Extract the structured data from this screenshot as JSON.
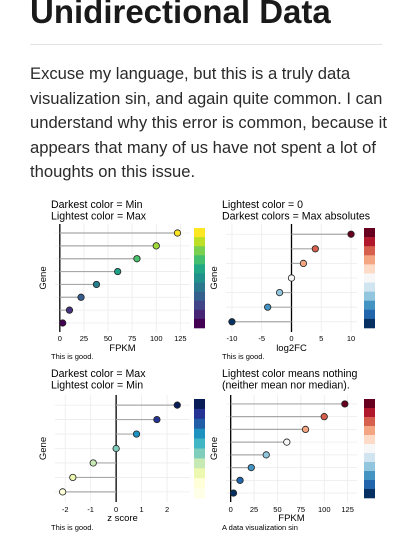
{
  "article": {
    "heading": "Unidirectional Data",
    "paragraph": "Excuse my language, but this is a truly data visualization sin, and again quite common. I can understand why this error is common, because it appears that many of us have not spent a lot of thoughts on this issue."
  },
  "chart_data": [
    {
      "type": "lollipop",
      "title": "Darkest color = Min\nLightest color = Max",
      "xlabel": "FPKM",
      "ylabel": "Gene",
      "caption": "This is good.",
      "xlim": [
        -5,
        135
      ],
      "xticks": [
        0,
        25,
        50,
        75,
        100,
        125
      ],
      "values": [
        3,
        10,
        22,
        38,
        60,
        80,
        100,
        122
      ],
      "colors": [
        "#440154",
        "#46327e",
        "#365c8d",
        "#277f8e",
        "#1fa187",
        "#4ac16d",
        "#a0da39",
        "#fde725"
      ],
      "colorbar": [
        "#fde725",
        "#bddf26",
        "#7ad151",
        "#44bf70",
        "#22a884",
        "#21918c",
        "#2a788e",
        "#355f8d",
        "#414487",
        "#482475",
        "#440154"
      ]
    },
    {
      "type": "lollipop",
      "title": "Lightest color = 0\nDarkest colors = Max absolutes",
      "xlabel": "log2FC",
      "ylabel": "Gene",
      "caption": "This is good.",
      "xlim": [
        -11,
        11
      ],
      "xticks": [
        -10,
        -5,
        0,
        5,
        10
      ],
      "values": [
        -10,
        -4,
        -2,
        0,
        2,
        4,
        10
      ],
      "colors": [
        "#053061",
        "#4393c3",
        "#92c5de",
        "#f7f7f7",
        "#f4a582",
        "#d6604d",
        "#67001f"
      ],
      "colorbar": [
        "#67001f",
        "#b2182b",
        "#d6604d",
        "#f4a582",
        "#fddbc7",
        "#f7f7f7",
        "#d1e5f0",
        "#92c5de",
        "#4393c3",
        "#2166ac",
        "#053061"
      ]
    },
    {
      "type": "lollipop",
      "title": "Darkest color = Max\nLightest color = Min",
      "xlabel": "z score",
      "ylabel": "Gene",
      "caption": "This is good.",
      "xlim": [
        -2.4,
        2.9
      ],
      "xticks": [
        -2,
        -1,
        0,
        1,
        2
      ],
      "values": [
        -2.1,
        -1.7,
        -0.9,
        0,
        0.8,
        1.6,
        2.4
      ],
      "colors": [
        "#ffffd9",
        "#edf8b1",
        "#c7e9b4",
        "#7fcdbb",
        "#1d91c0",
        "#253494",
        "#081d58"
      ],
      "colorbar": [
        "#081d58",
        "#253494",
        "#225ea8",
        "#1d91c0",
        "#41b6c4",
        "#7fcdbb",
        "#c7e9b4",
        "#edf8b1",
        "#ffffd9",
        "#ffffe8"
      ]
    },
    {
      "type": "lollipop",
      "title": "Lightest color means nothing\n(neither mean nor median).",
      "xlabel": "FPKM",
      "ylabel": "Gene",
      "caption": "A data visualization sin",
      "xlim": [
        -5,
        135
      ],
      "xticks": [
        0,
        25,
        50,
        75,
        100,
        125
      ],
      "values": [
        3,
        10,
        22,
        38,
        60,
        80,
        100,
        122
      ],
      "colors": [
        "#053061",
        "#2166ac",
        "#4393c3",
        "#92c5de",
        "#f7f7f7",
        "#f4a582",
        "#d6604d",
        "#67001f"
      ],
      "colorbar": [
        "#67001f",
        "#b2182b",
        "#d6604d",
        "#f4a582",
        "#fddbc7",
        "#f7f7f7",
        "#d1e5f0",
        "#92c5de",
        "#4393c3",
        "#2166ac",
        "#053061"
      ]
    }
  ]
}
